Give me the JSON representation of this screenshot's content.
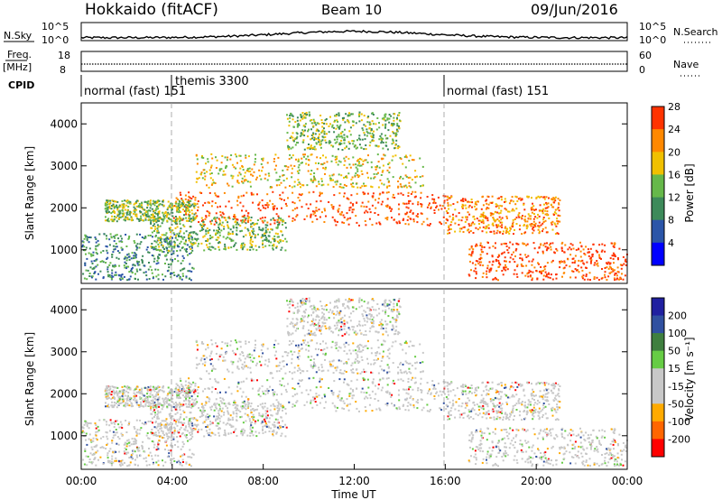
{
  "header": {
    "title": "Hokkaido (fitACF)",
    "beam": "Beam 10",
    "date": "09/Jun/2016"
  },
  "noise_panel": {
    "left_label": "N.Sky",
    "right_label": "N.Search",
    "left_ticks": [
      "10^5",
      "10^0"
    ],
    "right_ticks": [
      "10^5",
      "10^0"
    ]
  },
  "freq_panel": {
    "left_label_1": "Freq.",
    "left_label_2": "[MHz]",
    "right_label": "Nave",
    "left_ticks": [
      "18",
      "8"
    ],
    "right_ticks": [
      "60",
      "0"
    ]
  },
  "cpid_panel": {
    "label": "CPID",
    "modes": [
      {
        "name": "normal (fast)",
        "id": "151",
        "start_hour": 0
      },
      {
        "name": "themis",
        "id": "3300",
        "start_hour": 4
      },
      {
        "name": "normal (fast)",
        "id": "151",
        "start_hour": 16
      }
    ]
  },
  "colors": {
    "power_scale": [
      "#0000ff",
      "#2b55a8",
      "#3d8a5a",
      "#66b84a",
      "#f0c000",
      "#ff8800",
      "#ff3300"
    ],
    "velocity_scale": [
      "#2020a0",
      "#3050a0",
      "#3f7f3f",
      "#66cc44",
      "#c8c8c8",
      "#c8c8c8",
      "#ffaa00",
      "#ff6600",
      "#ff0000"
    ]
  },
  "chart_data": [
    {
      "type": "heatmap",
      "name": "power",
      "ylabel": "Slant Range [km]",
      "xlabel": "",
      "y_ticks": [
        "1000",
        "2000",
        "3000",
        "4000"
      ],
      "ylim": [
        200,
        4500
      ],
      "colorbar_label": "Power [dB]",
      "colorbar_ticks": [
        "4",
        "8",
        "12",
        "16",
        "20",
        "24",
        "28"
      ],
      "colorbar_range": [
        0,
        32
      ]
    },
    {
      "type": "heatmap",
      "name": "velocity",
      "ylabel": "Slant Range [km]",
      "xlabel": "Time UT",
      "x_ticks": [
        "00:00",
        "04:00",
        "08:00",
        "12:00",
        "16:00",
        "20:00",
        "00:00"
      ],
      "y_ticks": [
        "1000",
        "2000",
        "3000",
        "4000"
      ],
      "ylim": [
        200,
        4500
      ],
      "colorbar_label": "Velocity [m s⁻¹]",
      "colorbar_ticks": [
        "200",
        "100",
        "50",
        "15",
        "-15",
        "-50",
        "-100",
        "-200"
      ]
    }
  ]
}
